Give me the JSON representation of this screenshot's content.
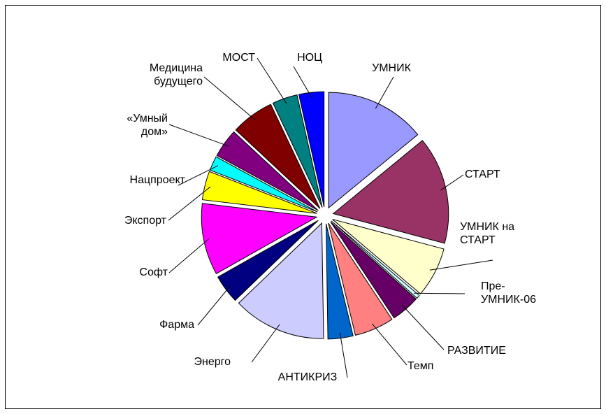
{
  "chart_data": {
    "type": "pie",
    "exploded": true,
    "categories": [
      "УМНИК",
      "СТАРТ",
      "УМНИК на\nСТАРТ",
      "Пре-\nУМНИК-06",
      "РАЗВИТИЕ",
      "Темп",
      "АНТИКРИЗ",
      "Энерго",
      "Фарма",
      "Софт",
      "Экспорт",
      "Нацпроект",
      "«Умный\nдом»",
      "Медицина\nбудущего",
      "МОСТ",
      "НОЦ"
    ],
    "values": [
      14,
      15,
      7,
      0.5,
      4,
      5.5,
      3.5,
      13,
      4,
      10,
      4,
      2,
      4,
      6,
      3.5,
      3.5
    ],
    "colors": [
      "#9999ff",
      "#993366",
      "#ffffcc",
      "#ccffff",
      "#660066",
      "#ff8080",
      "#0066cc",
      "#ccccff",
      "#000080",
      "#ff00ff",
      "#ffff00",
      "#00ffff",
      "#800080",
      "#800000",
      "#008080",
      "#0000ff"
    ]
  }
}
